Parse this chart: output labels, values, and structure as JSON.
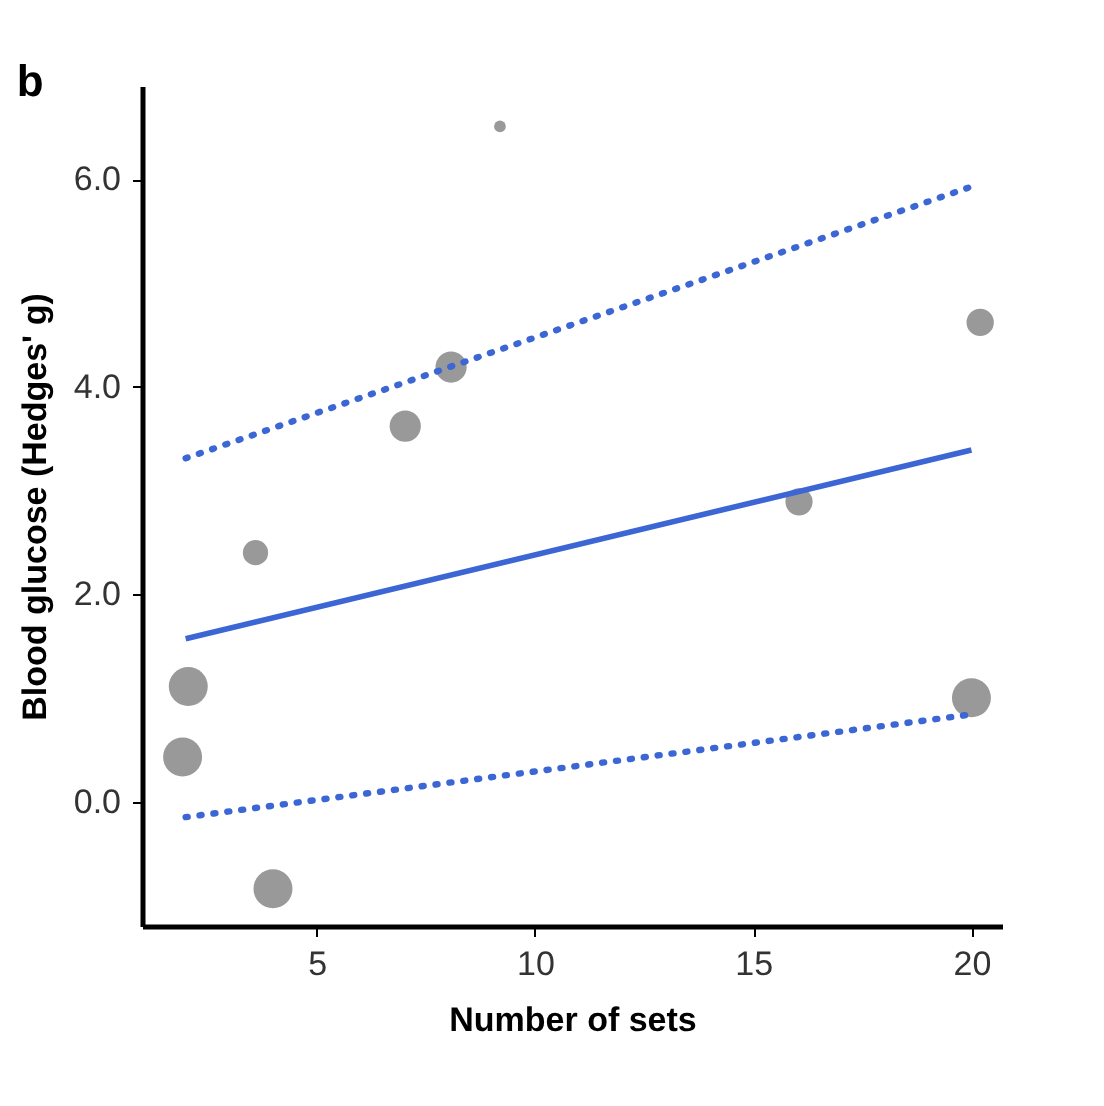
{
  "chart_data": {
    "type": "scatter",
    "xlabel": "Number of sets",
    "ylabel": "Blood glucose (Hedges' g)",
    "annotations": [
      "b"
    ],
    "xlim": [
      1,
      20.7
    ],
    "xticks": [
      5,
      10,
      15,
      20
    ],
    "ylim": [
      -1.2,
      6.9
    ],
    "yticks": [
      {
        "value": 0,
        "label": "0.0"
      },
      {
        "value": 2,
        "label": "2.0"
      },
      {
        "value": 4,
        "label": "4.0"
      },
      {
        "value": 6,
        "label": "6.0"
      }
    ],
    "grid": false,
    "marker": "circle",
    "series": [
      {
        "type": "bubble",
        "color": "#999999",
        "x": [
          2.06,
          1.93,
          4.0,
          3.6,
          20,
          9.2,
          8.08,
          7.03,
          16.05,
          20.2
        ],
        "values": [
          1.11,
          0.43,
          -0.84,
          2.4,
          1.0,
          6.51,
          4.19,
          3.62,
          2.89,
          4.62
        ],
        "sizes": [
          1,
          1,
          1,
          0.42,
          1,
          0.09,
          0.64,
          0.64,
          0.49,
          0.49
        ]
      },
      {
        "type": "line",
        "color": "#3b66d4",
        "line_style": "solid",
        "marker": "none",
        "x": [
          2,
          20
        ],
        "values": [
          1.57,
          3.39
        ]
      },
      {
        "type": "line",
        "color": "#3b66d4",
        "line_style": "dotted",
        "marker": "none",
        "x": [
          2,
          20
        ],
        "values": [
          3.31,
          5.93
        ]
      },
      {
        "type": "line",
        "color": "#3b66d4",
        "line_style": "dotted",
        "marker": "none",
        "x": [
          2,
          20
        ],
        "values": [
          -0.15,
          0.84
        ]
      }
    ]
  }
}
